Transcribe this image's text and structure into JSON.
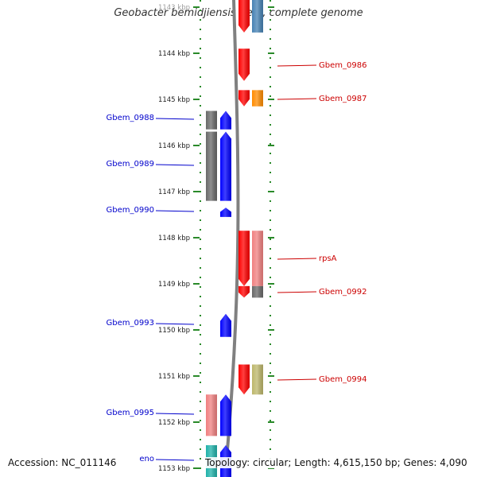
{
  "title": "Geobacter bemidjiensis Bem, complete genome",
  "footer": {
    "accession": "Accession: NC_011146",
    "info": "Topology: circular; Length: 4,615,150 bp; Genes: 4,090"
  },
  "ticks": [
    {
      "label": "1143 kbp",
      "kbp": 1143
    },
    {
      "label": "1144 kbp",
      "kbp": 1144
    },
    {
      "label": "1145 kbp",
      "kbp": 1145
    },
    {
      "label": "1146 kbp",
      "kbp": 1146
    },
    {
      "label": "1147 kbp",
      "kbp": 1147
    },
    {
      "label": "1148 kbp",
      "kbp": 1148
    },
    {
      "label": "1149 kbp",
      "kbp": 1149
    },
    {
      "label": "1150 kbp",
      "kbp": 1150
    },
    {
      "label": "1151 kbp",
      "kbp": 1151
    },
    {
      "label": "1152 kbp",
      "kbp": 1152
    },
    {
      "label": "1153 kbp",
      "kbp": 1153
    }
  ],
  "colors": {
    "minus_strand_label": "#0000cc",
    "plus_strand_label": "#cc0000",
    "dots": "#2a8a2a",
    "backbone": "#808080"
  },
  "genes": [
    {
      "name": "",
      "strand": "+",
      "start": 1142.8,
      "end": 1143.55,
      "color": "#ff0000"
    },
    {
      "name": "",
      "strand": "+",
      "start": 1142.8,
      "end": 1143.55,
      "color": "#4682b4",
      "lane": "func"
    },
    {
      "name": "Gbem_0986",
      "strand": "+",
      "start": 1143.9,
      "end": 1144.6,
      "color": "#ff0000"
    },
    {
      "name": "Gbem_0987",
      "strand": "+",
      "start": 1144.8,
      "end": 1145.15,
      "color": "#ff0000"
    },
    {
      "name": "",
      "strand": "+",
      "start": 1144.8,
      "end": 1145.15,
      "color": "#ff8c00",
      "lane": "func"
    },
    {
      "name": "Gbem_0988",
      "strand": "-",
      "start": 1145.25,
      "end": 1145.65,
      "color": "#0000ff"
    },
    {
      "name": "",
      "strand": "-",
      "start": 1145.25,
      "end": 1145.65,
      "color": "#696969",
      "lane": "func"
    },
    {
      "name": "Gbem_0989",
      "strand": "-",
      "start": 1145.7,
      "end": 1147.2,
      "color": "#0000ff"
    },
    {
      "name": "",
      "strand": "-",
      "start": 1145.7,
      "end": 1147.2,
      "color": "#696969",
      "lane": "func"
    },
    {
      "name": "Gbem_0990",
      "strand": "-",
      "start": 1147.35,
      "end": 1147.55,
      "color": "#0000ff"
    },
    {
      "name": "rpsA",
      "strand": "+",
      "start": 1147.85,
      "end": 1149.05,
      "color": "#ff0000"
    },
    {
      "name": "",
      "strand": "+",
      "start": 1147.85,
      "end": 1149.05,
      "color": "#f08080",
      "lane": "func"
    },
    {
      "name": "Gbem_0992",
      "strand": "+",
      "start": 1149.05,
      "end": 1149.3,
      "color": "#ff0000"
    },
    {
      "name": "",
      "strand": "+",
      "start": 1149.05,
      "end": 1149.3,
      "color": "#696969",
      "lane": "func"
    },
    {
      "name": "Gbem_0993",
      "strand": "-",
      "start": 1149.65,
      "end": 1150.15,
      "color": "#0000ff"
    },
    {
      "name": "Gbem_0994",
      "strand": "+",
      "start": 1150.75,
      "end": 1151.4,
      "color": "#ff0000"
    },
    {
      "name": "",
      "strand": "+",
      "start": 1150.75,
      "end": 1151.4,
      "color": "#bdb76b",
      "lane": "func"
    },
    {
      "name": "Gbem_0995",
      "strand": "-",
      "start": 1151.4,
      "end": 1152.3,
      "color": "#0000ff"
    },
    {
      "name": "",
      "strand": "-",
      "start": 1151.4,
      "end": 1152.3,
      "color": "#f08080",
      "lane": "func"
    },
    {
      "name": "eno",
      "strand": "-",
      "start": 1152.5,
      "end": 1153.2,
      "color": "#0000ff"
    },
    {
      "name": "",
      "strand": "-",
      "start": 1152.5,
      "end": 1153.2,
      "color": "#20b2aa",
      "lane": "func"
    }
  ]
}
